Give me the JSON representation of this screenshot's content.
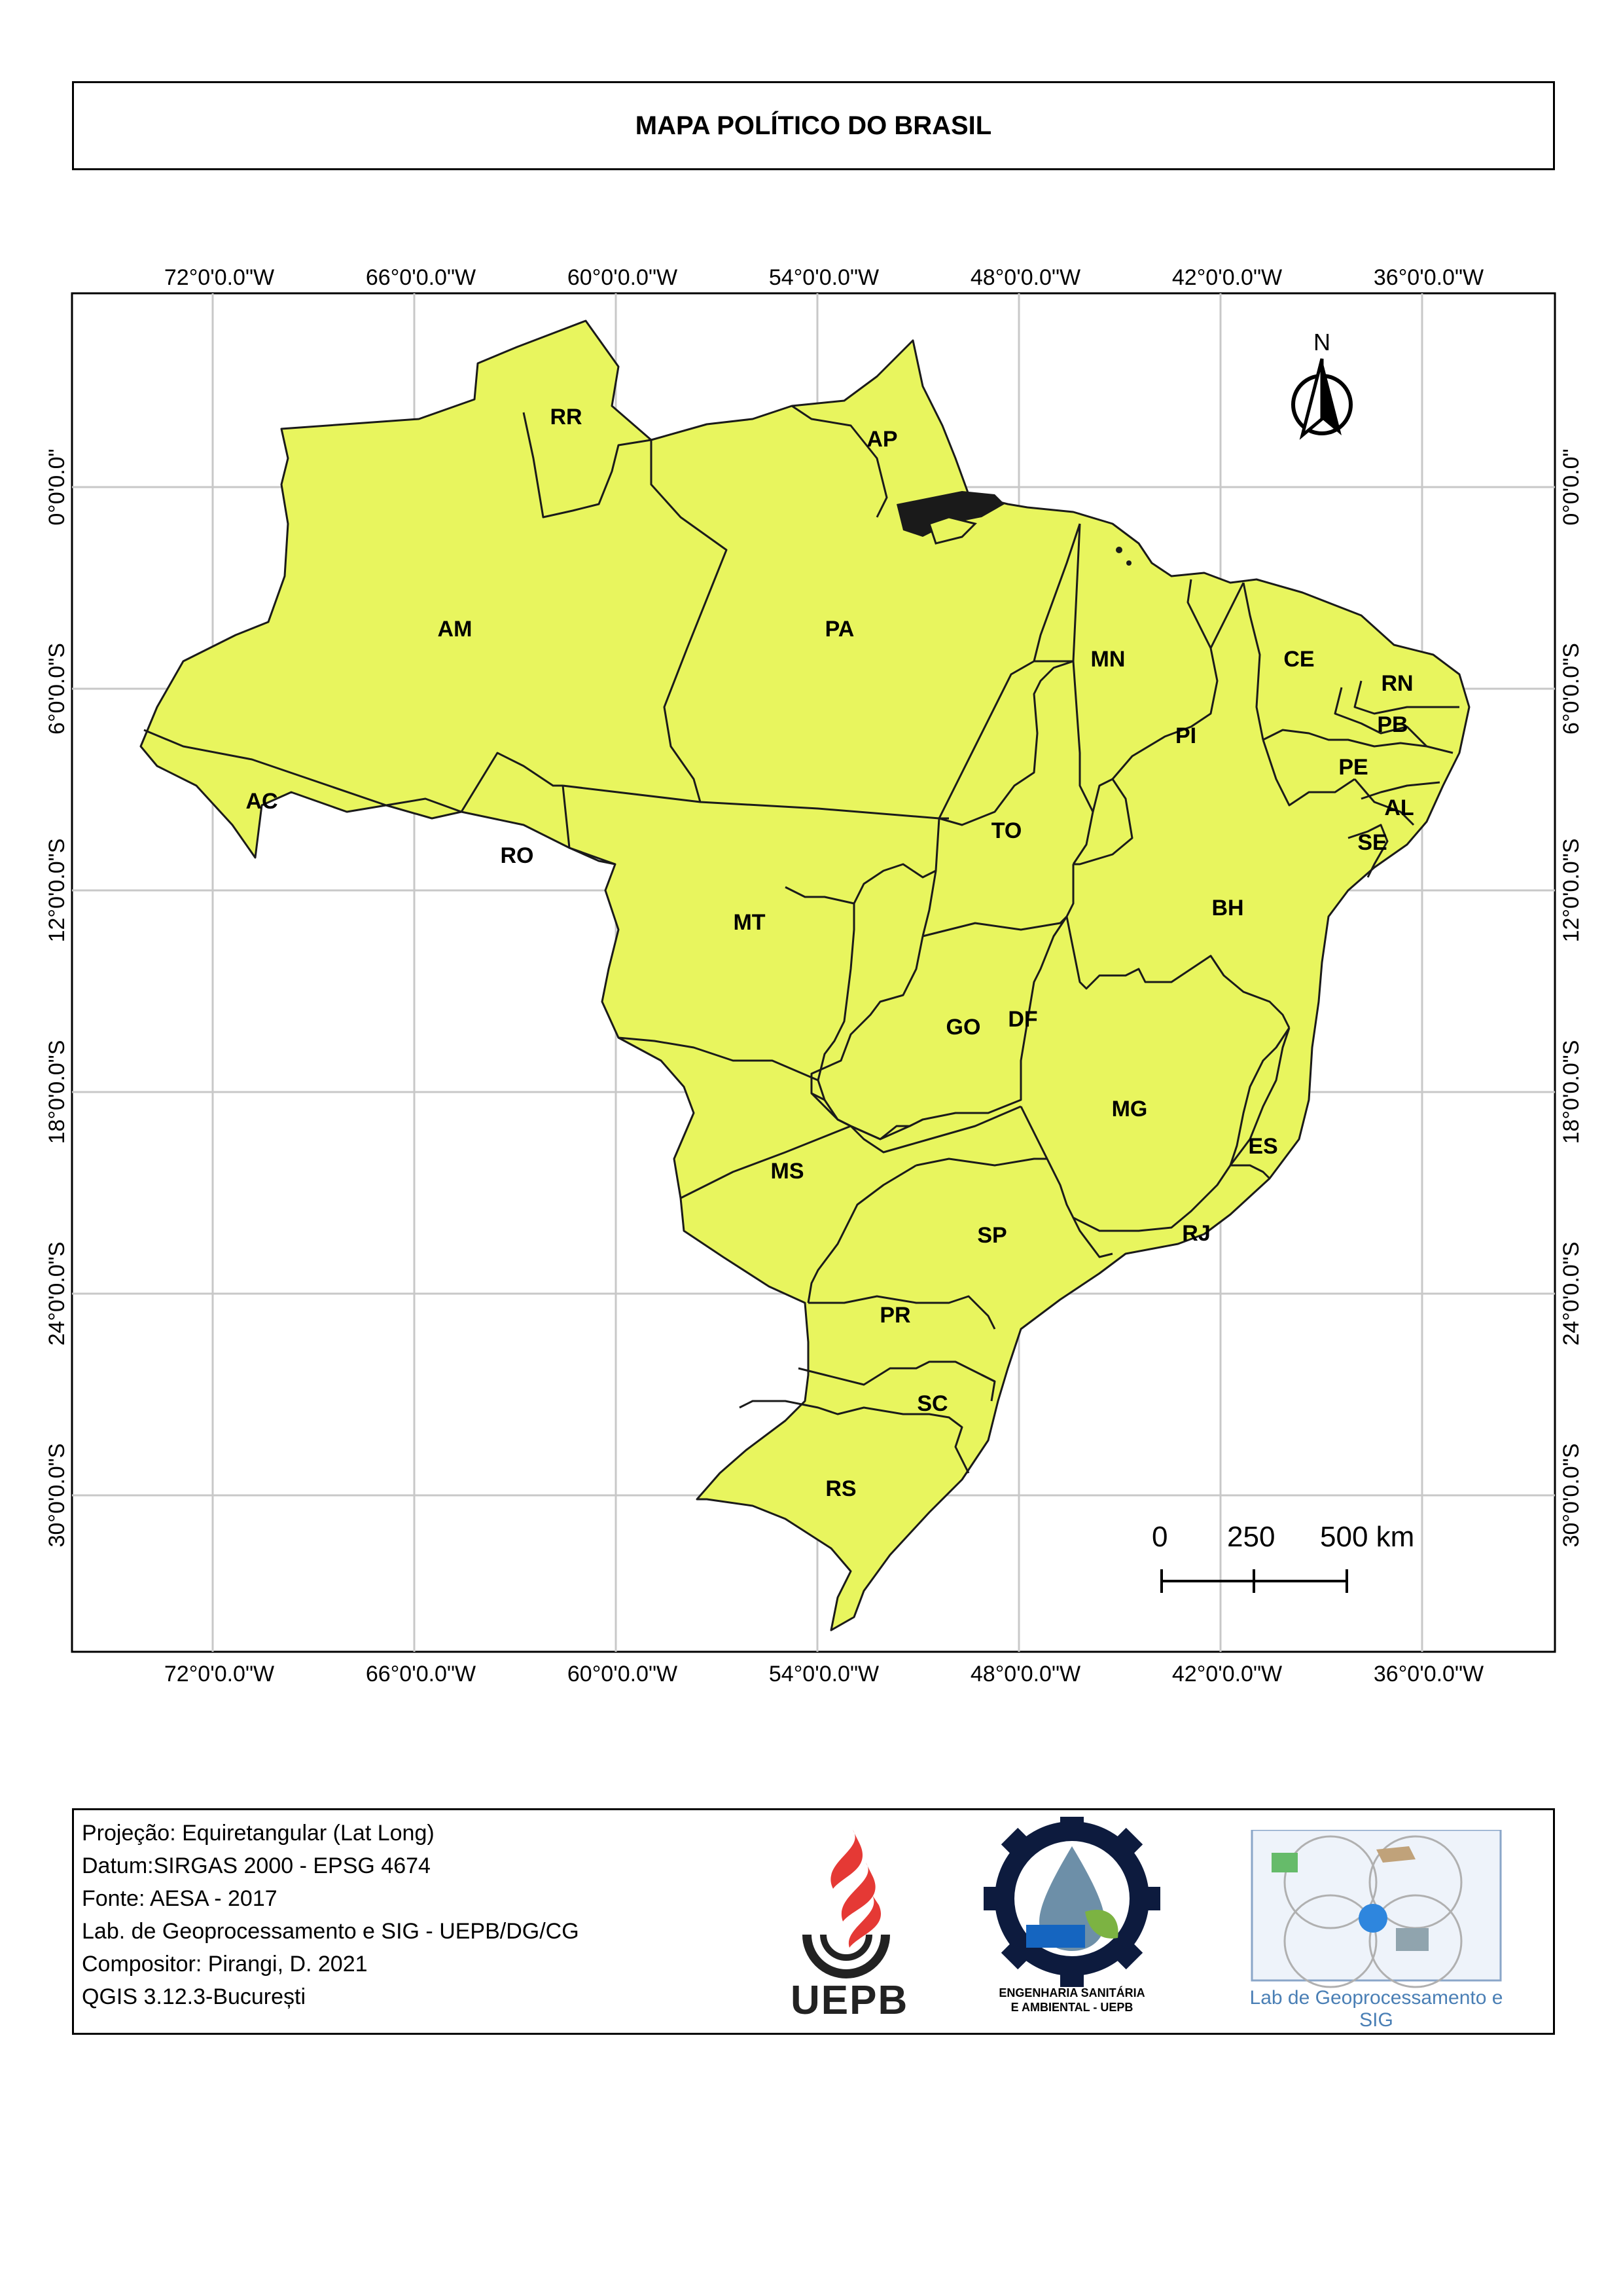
{
  "title": "MAPA POLÍTICO DO BRASIL",
  "graticule": {
    "longitudes_top": [
      "72°0'0.0\"W",
      "66°0'0.0\"W",
      "60°0'0.0\"W",
      "54°0'0.0\"W",
      "48°0'0.0\"W",
      "42°0'0.0\"W",
      "36°0'0.0\"W"
    ],
    "longitudes_bottom": [
      "72°0'0.0\"W",
      "66°0'0.0\"W",
      "60°0'0.0\"W",
      "54°0'0.0\"W",
      "48°0'0.0\"W",
      "42°0'0.0\"W",
      "36°0'0.0\"W"
    ],
    "latitudes_left": [
      "0°0'0.0\"",
      "6°0'0.0\"S",
      "12°0'0.0\"S",
      "18°0'0.0\"S",
      "24°0'0.0\"S",
      "30°0'0.0\"S"
    ],
    "latitudes_right": [
      "0°0'0.0\"",
      "6°0'0.0\"S",
      "12°0'0.0\"S",
      "18°0'0.0\"S",
      "24°0'0.0\"S",
      "30°0'0.0\"S"
    ]
  },
  "states": [
    "RR",
    "AP",
    "AM",
    "PA",
    "MN",
    "CE",
    "RN",
    "PB",
    "PI",
    "PE",
    "AL",
    "AC",
    "TO",
    "SE",
    "RO",
    "MT",
    "BH",
    "GO",
    "DF",
    "MG",
    "ES",
    "MS",
    "SP",
    "RJ",
    "PR",
    "SC",
    "RS"
  ],
  "north_arrow": {
    "label": "N"
  },
  "scale_bar": {
    "ticks": [
      "0",
      "250",
      "500 km"
    ]
  },
  "colors": {
    "land": "#e8f55e",
    "border": "#1a1a1a",
    "grid": "#c8c8c8"
  },
  "info": {
    "lines": [
      "Projeção: Equiretangular (Lat Long)",
      "Datum:SIRGAS 2000 - EPSG 4674",
      "Fonte: AESA - 2017",
      "Lab. de Geoprocessamento e SIG - UEPB/DG/CG",
      "Compositor: Pirangi, D. 2021",
      "QGIS 3.12.3-București"
    ],
    "logos": {
      "uepb": "UEPB",
      "esa_line1": "ENGENHARIA SANITÁRIA",
      "esa_line2": "E AMBIENTAL - UEPB",
      "lab": "Lab de Geoprocessamento e SIG"
    }
  }
}
